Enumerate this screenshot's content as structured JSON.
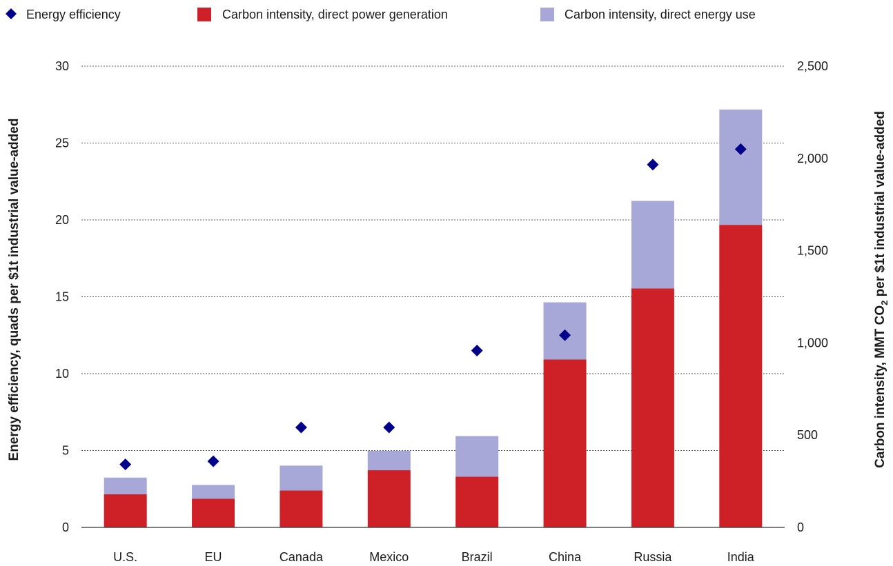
{
  "chart_data": {
    "type": "bar",
    "title": "",
    "categories": [
      "U.S.",
      "EU",
      "Canada",
      "Mexico",
      "Brazil",
      "China",
      "Russia",
      "India"
    ],
    "series": [
      {
        "name": "Carbon intensity, direct power generation",
        "kind": "stacked-bar",
        "axis": "right",
        "color": "#cd2027",
        "values": [
          180,
          155,
          200,
          310,
          275,
          910,
          1295,
          1640
        ]
      },
      {
        "name": "Carbon intensity, direct energy use",
        "kind": "stacked-bar",
        "axis": "right",
        "color": "#a8a8d8",
        "values": [
          90,
          75,
          135,
          105,
          220,
          310,
          475,
          625
        ]
      },
      {
        "name": "Energy efficiency",
        "kind": "scatter",
        "marker": "diamond",
        "axis": "left",
        "color": "#00008b",
        "values": [
          4.1,
          4.3,
          6.5,
          6.5,
          11.5,
          12.5,
          23.6,
          24.6
        ]
      }
    ],
    "y_left": {
      "label": "Energy efficiency, quads per $1t industrial value-added",
      "ylim": [
        0,
        30
      ],
      "ticks": [
        "0",
        "5",
        "10",
        "15",
        "20",
        "25",
        "30"
      ]
    },
    "y_right": {
      "label_main": "Carbon intensity, MMT CO",
      "label_sub": "2",
      "label_tail": " per $1t industrial value-added",
      "ylim": [
        0,
        2500
      ],
      "ticks": [
        "0",
        "500",
        "1,000",
        "1,500",
        "2,000",
        "2,500"
      ]
    },
    "grid": true,
    "grid_style": "dotted-horizontal",
    "legend_position": "top",
    "legend": [
      {
        "label": "Energy efficiency",
        "marker": "diamond",
        "color": "#00008b"
      },
      {
        "label": "Carbon intensity, direct power generation",
        "marker": "square",
        "color": "#cd2027"
      },
      {
        "label": "Carbon intensity, direct energy use",
        "marker": "square",
        "color": "#a8a8d8"
      }
    ]
  }
}
